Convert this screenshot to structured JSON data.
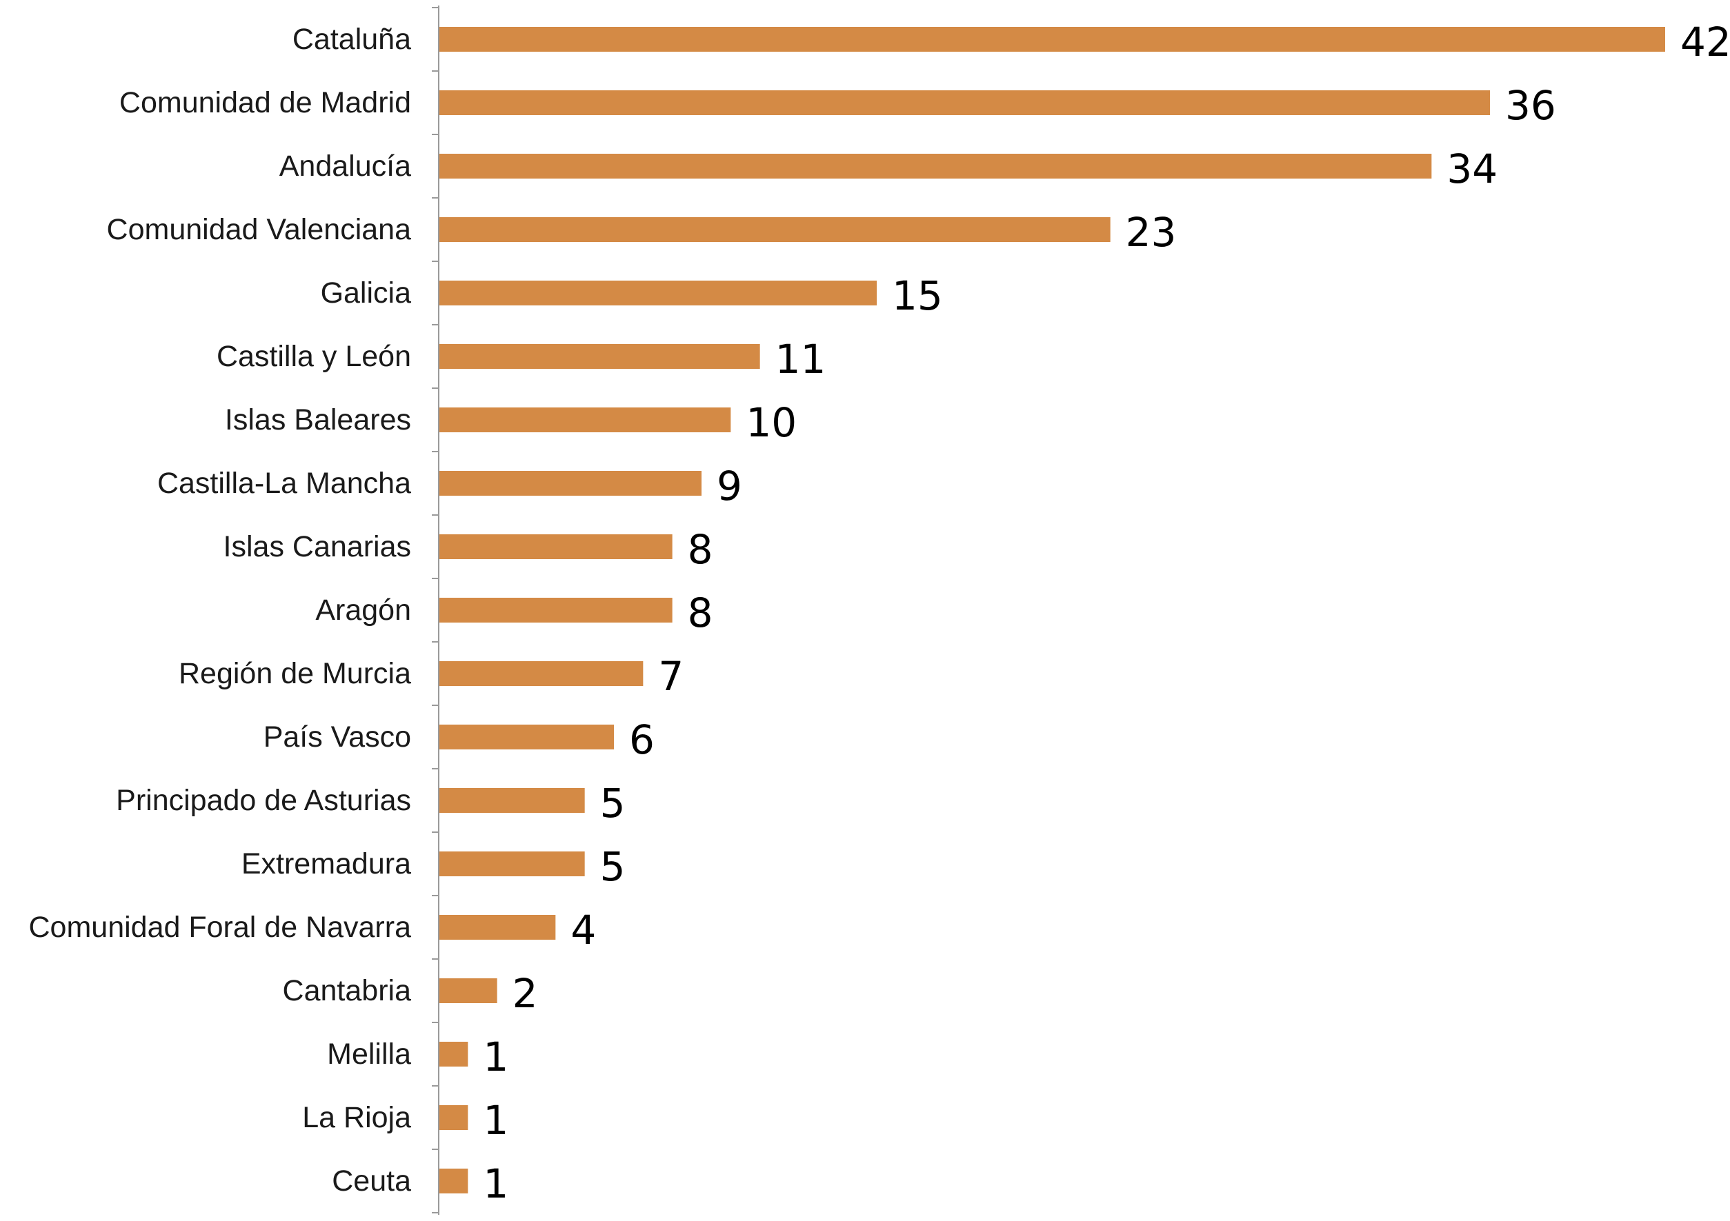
{
  "chart_data": {
    "type": "bar",
    "orientation": "horizontal",
    "categories": [
      "Cataluña",
      "Comunidad de Madrid",
      "Andalucía",
      "Comunidad Valenciana",
      "Galicia",
      "Castilla y León",
      "Islas Baleares",
      "Castilla-La Mancha",
      "Islas Canarias",
      "Aragón",
      "Región de Murcia",
      "País Vasco",
      "Principado de Asturias",
      "Extremadura",
      "Comunidad Foral de Navarra",
      "Cantabria",
      "Melilla",
      "La Rioja",
      "Ceuta"
    ],
    "values": [
      42,
      36,
      34,
      23,
      15,
      11,
      10,
      9,
      8,
      8,
      7,
      6,
      5,
      5,
      4,
      2,
      1,
      1,
      1
    ],
    "title": "",
    "xlabel": "",
    "ylabel": "",
    "xlim": [
      0,
      42
    ],
    "grid": false,
    "legend": "none",
    "data_labels": true,
    "colors": {
      "bar": "#d48a45",
      "axis": "#9a9a9a",
      "text": "#1a1a1a"
    }
  }
}
